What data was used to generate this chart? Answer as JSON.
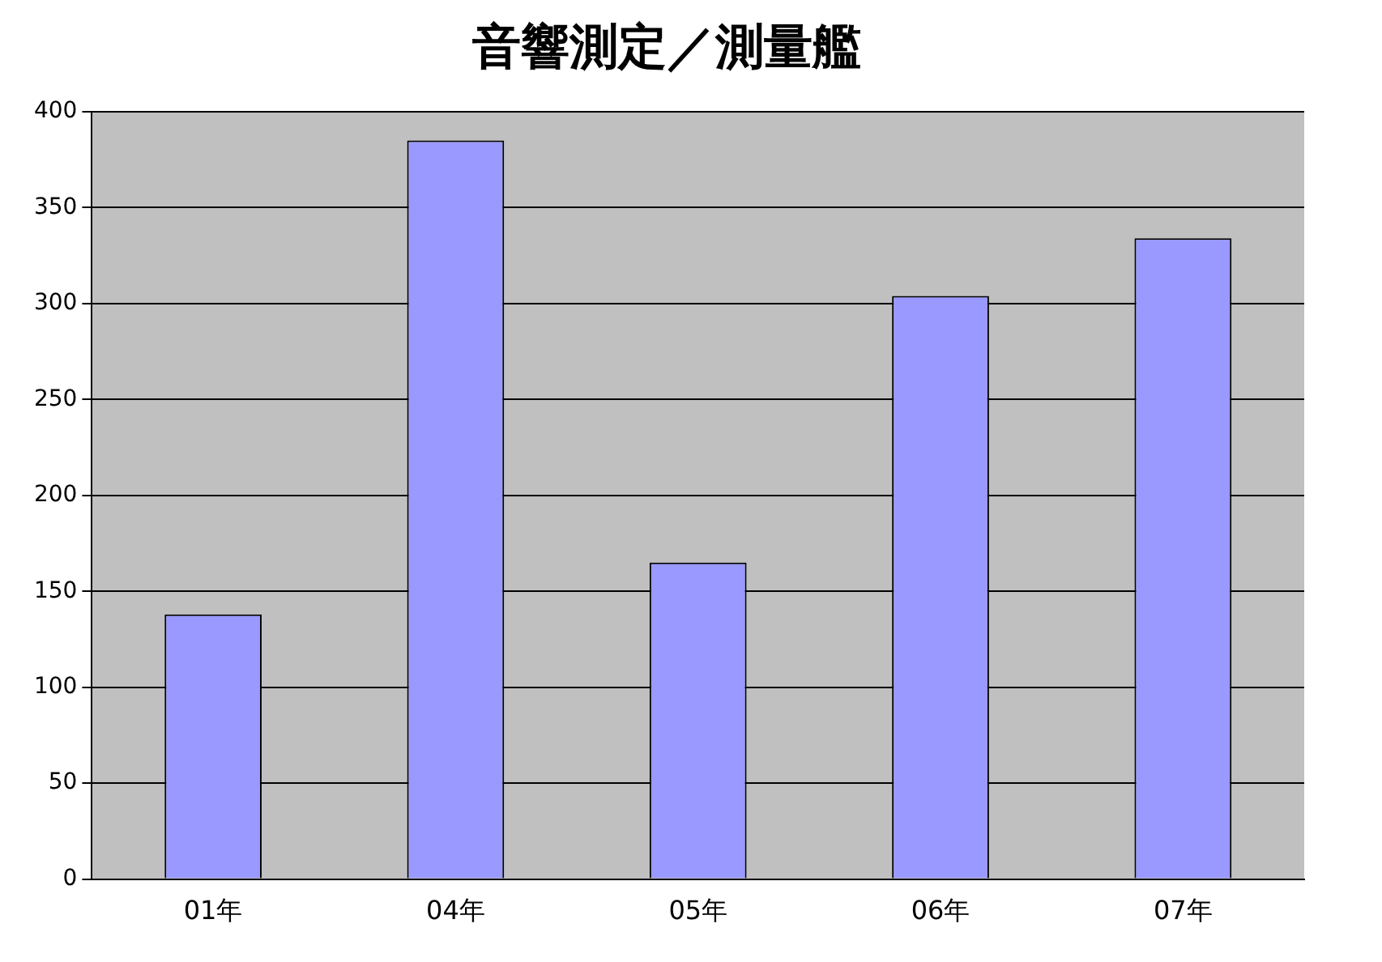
{
  "chart_data": {
    "type": "bar",
    "title": "音響測定／測量艦",
    "categories": [
      "01年",
      "04年",
      "05年",
      "06年",
      "07年"
    ],
    "values": [
      138,
      385,
      165,
      304,
      334
    ],
    "color": "#9999ff",
    "ylim": [
      0,
      400
    ],
    "yticks": [
      0,
      50,
      100,
      150,
      200,
      250,
      300,
      350,
      400
    ],
    "grid": "y",
    "legend": false
  }
}
